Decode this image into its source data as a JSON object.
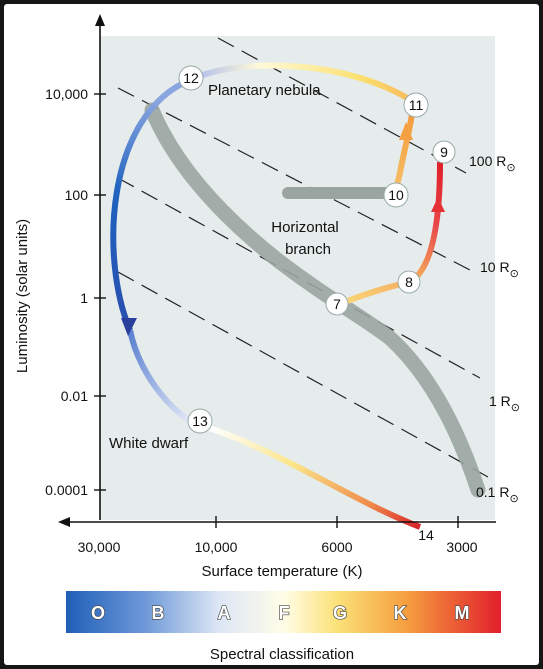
{
  "diagram": {
    "y_axis_label": "Luminosity (solar units)",
    "x_axis_label": "Surface temperature (K)",
    "spectral_label": "Spectral classification",
    "y_ticks": [
      "10,000",
      "100",
      "1",
      "0.01",
      "0.0001"
    ],
    "x_ticks": [
      "30,000",
      "10,000",
      "6000",
      "3000"
    ],
    "radius_lines": [
      {
        "value": "100 R",
        "sub": "⊙"
      },
      {
        "value": "10 R",
        "sub": "⊙"
      },
      {
        "value": "1 R",
        "sub": "⊙"
      },
      {
        "value": "0.1 R",
        "sub": "⊙"
      }
    ],
    "region_labels": {
      "planetary_nebula": "Planetary nebula",
      "horizontal_branch_line1": "Horizontal",
      "horizontal_branch_line2": "branch",
      "white_dwarf": "White dwarf"
    },
    "stages": [
      "7",
      "8",
      "9",
      "10",
      "11",
      "12",
      "13",
      "14"
    ],
    "spectral_classes": [
      "O",
      "B",
      "A",
      "F",
      "G",
      "K",
      "M"
    ],
    "colors": {
      "plot_background": "#e5eceb",
      "main_sequence_band": "#9aa5a2",
      "spectral_blue": "#2f6fc0",
      "spectral_yellow": "#f7dc63",
      "spectral_red": "#e3262e"
    }
  }
}
